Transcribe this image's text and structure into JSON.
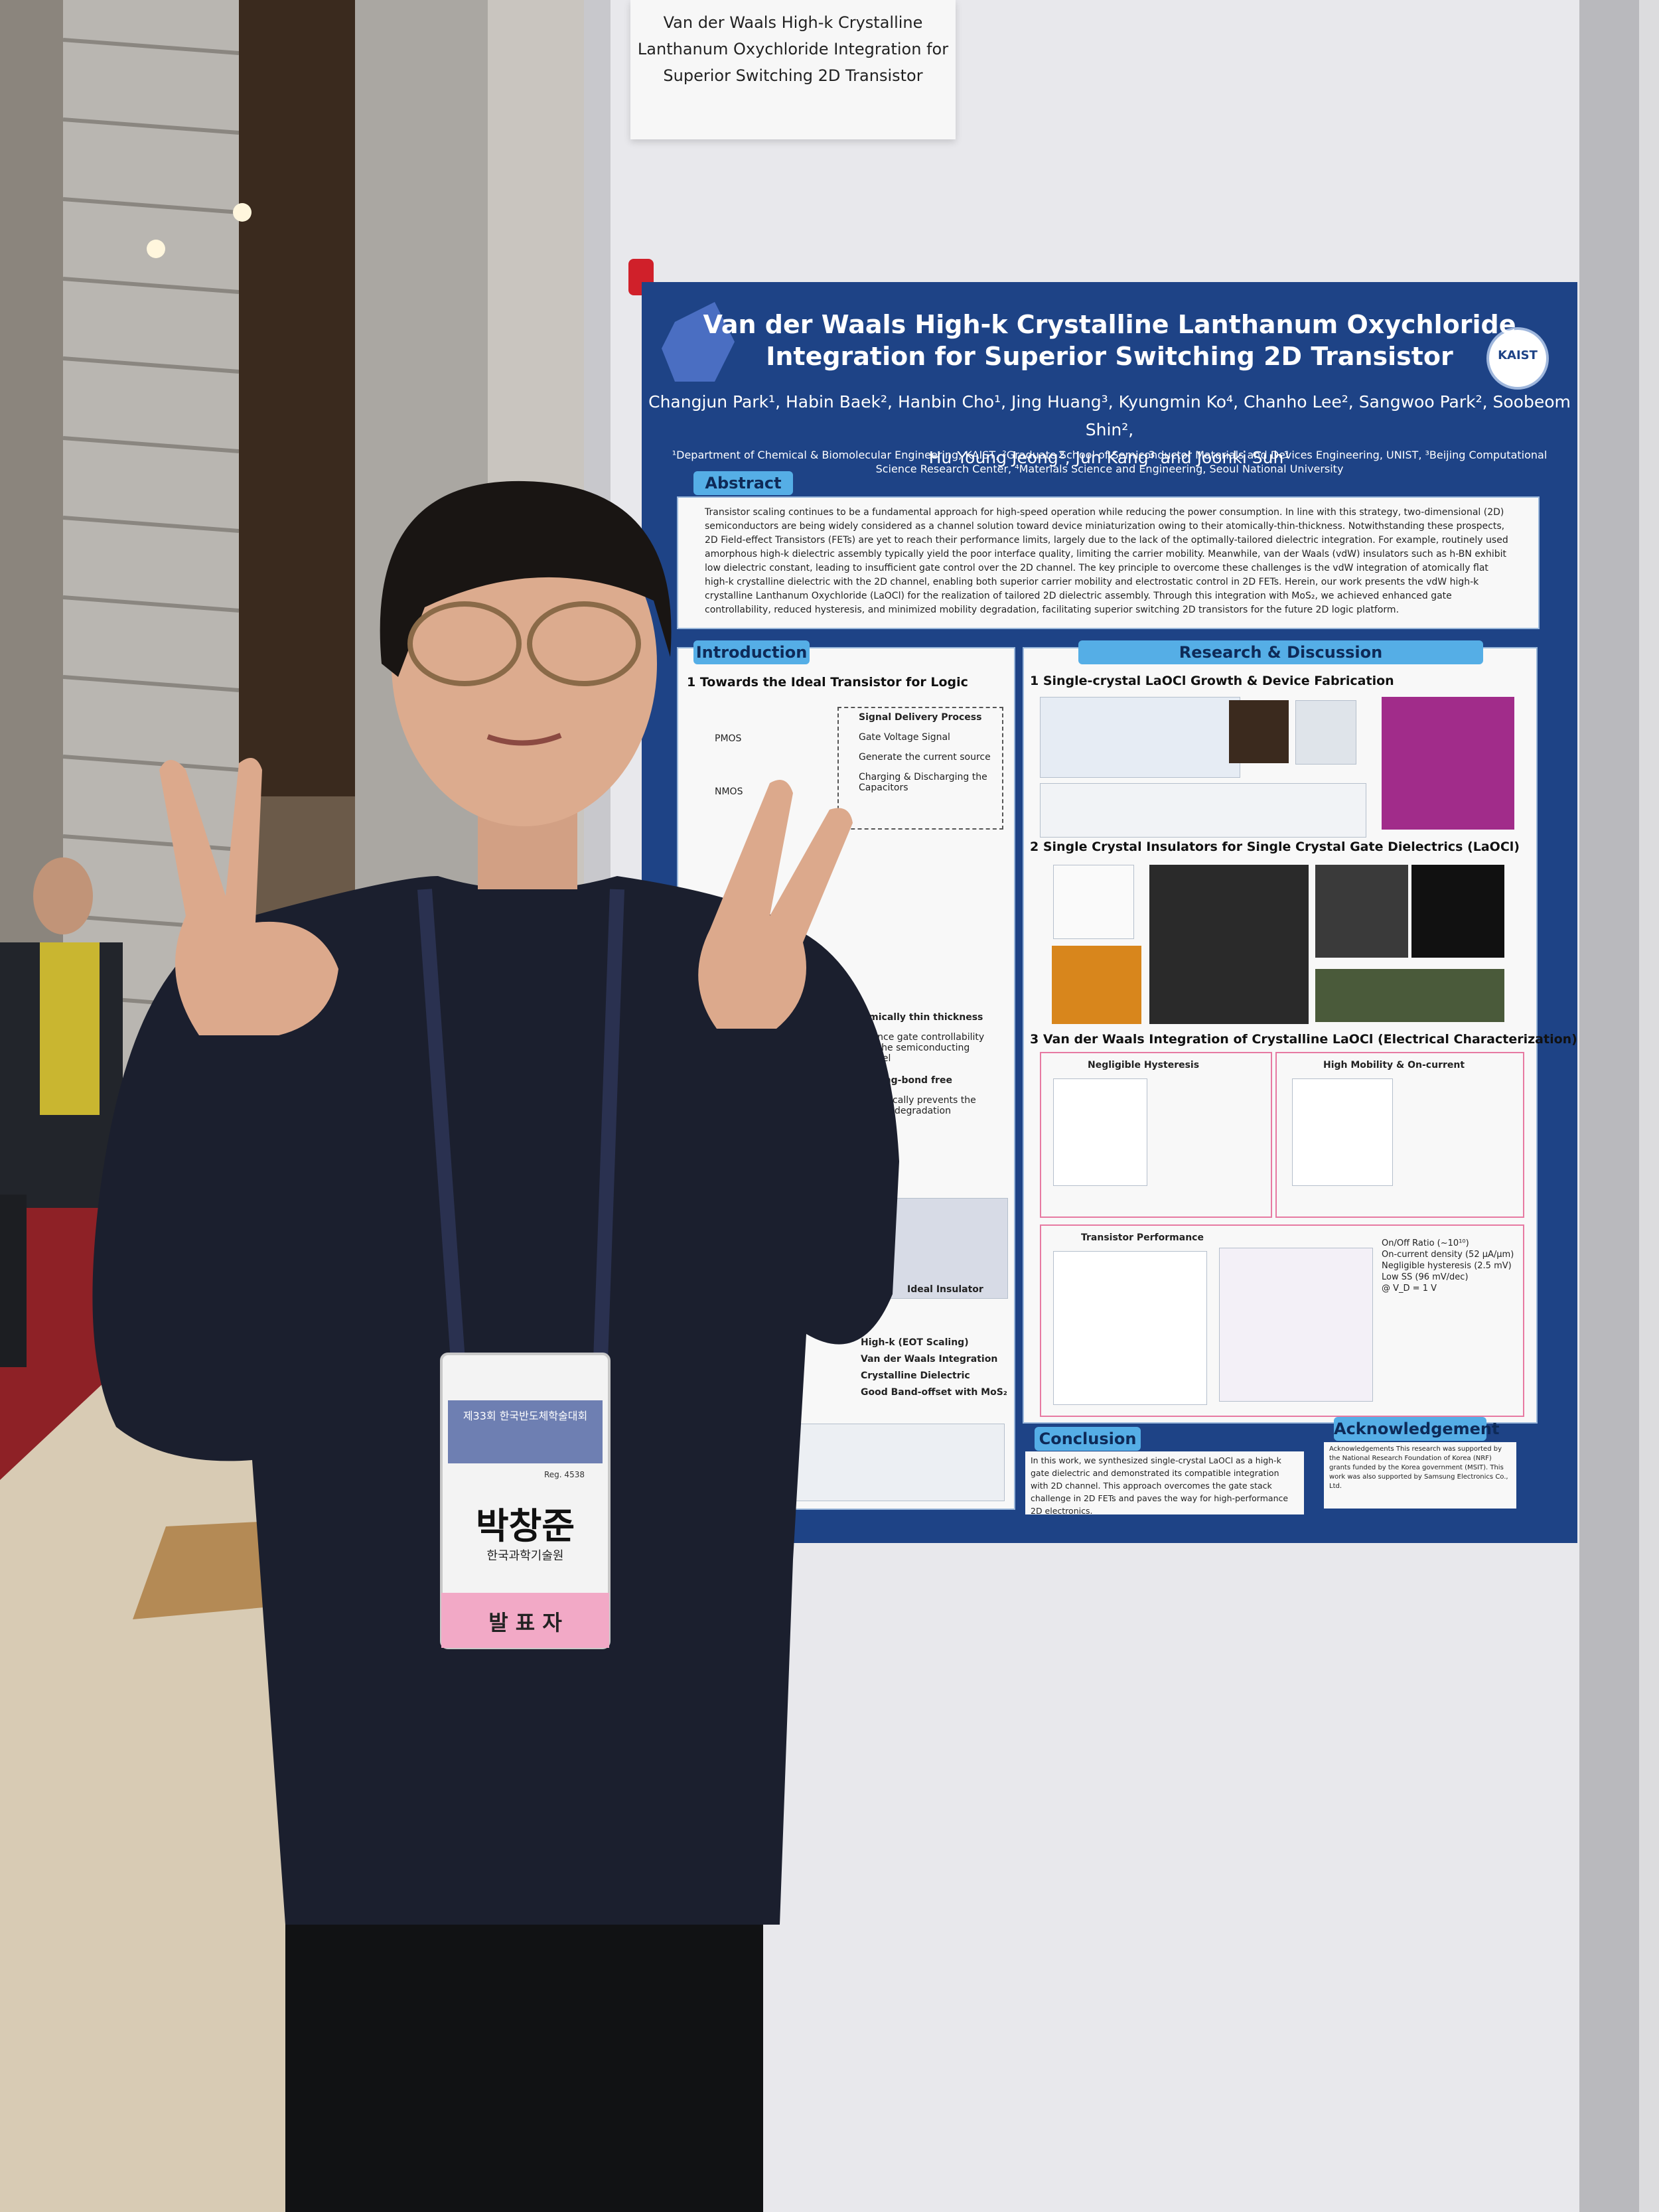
{
  "label": {
    "lines": [
      "Van der Waals High-k Crystalline",
      "Lanthanum Oxychloride Integration for",
      "Superior Switching 2D Transistor"
    ]
  },
  "poster": {
    "title": [
      "Van der Waals High-k Crystalline Lanthanum Oxychloride",
      "Integration for Superior Switching 2D Transistor"
    ],
    "logo": "KAIST",
    "authors": [
      "Changjun Park¹, Habin Baek², Hanbin Cho¹, Jing Huang³, Kyungmin Ko⁴, Chanho Lee², Sangwoo Park², Soobeom Shin²,",
      "Hu Young Jeong², Jun Kang³ and Joonki Suh¹"
    ],
    "affiliations": [
      "¹Department of Chemical & Biomolecular Engineering, KAIST, ²Graduate School of Semiconductor Materials and Devices Engineering, UNIST, ³Beijing Computational",
      "Science Research Center, ⁴Materials Science and Engineering, Seoul National University"
    ],
    "abstract": {
      "heading": "Abstract",
      "text": "Transistor scaling continues to be a fundamental approach for high-speed operation while reducing the power consumption. In line with this strategy, two-dimensional (2D) semiconductors are being widely considered as a channel solution toward device miniaturization owing to their atomically-thin-thickness. Notwithstanding these prospects, 2D Field-effect Transistors (FETs) are yet to reach their performance limits, largely due to the lack of the optimally-tailored dielectric integration. For example, routinely used amorphous high-k dielectric assembly typically yield the poor interface quality, limiting the carrier mobility. Meanwhile, van der Waals (vdW) insulators such as h-BN exhibit low dielectric constant, leading to insufficient gate control over the 2D channel. The key principle to overcome these challenges is the vdW integration of atomically flat high-k crystalline dielectric with the 2D channel, enabling both superior carrier mobility and electrostatic control in 2D FETs. Herein, our work presents the vdW high-k crystalline Lanthanum Oxychloride (LaOCl) for the realization of tailored 2D dielectric assembly. Through this integration with MoS₂, we achieved enhanced gate controllability, reduced hysteresis, and minimized mobility degradation, facilitating superior switching 2D transistors for the future 2D logic platform."
    },
    "introduction": {
      "heading": "Introduction",
      "section": "1 Towards the Ideal Transistor for Logic",
      "circuit": [
        "PMOS",
        "NMOS"
      ],
      "signal": [
        "Signal Delivery Process",
        "Gate Voltage Signal",
        "Generate the current source",
        "Charging & Discharging the Capacitors"
      ],
      "semiconductor": [
        "Atomically thin thickness",
        "Enhance gate controllability over the semiconducting channel",
        "Dangling-bond free",
        "Theoretically prevents the mobility degradation"
      ],
      "insulator": "Ideal Insulator",
      "laocl": [
        "High-k (EOT Scaling)",
        "Van der Waals Integration",
        "Crystalline Dielectric",
        "Good Band-offset with MoS₂"
      ]
    },
    "research": {
      "heading": "Research & Discussion",
      "sections": [
        "1 Single-crystal LaOCl Growth & Device Fabrication",
        "2 Single Crystal Insulators for Single Crystal Gate Dielectrics (LaOCl)",
        "3 Van der Waals Integration of Crystalline LaOCl (Electrical Characterization)"
      ],
      "panels": [
        "Negligible Hysteresis",
        "High Mobility & On-current",
        "Transistor Performance"
      ],
      "performance": [
        "On/Off Ratio (~10¹⁰)",
        "On-current density (52 µA/µm)",
        "Negligible hysteresis (2.5 mV)",
        "Low SS (96 mV/dec)",
        "@ V_D = 1 V"
      ]
    },
    "conclusion": {
      "heading": "Conclusion",
      "text": "In this work, we synthesized single-crystal LaOCl as a high-k gate dielectric and demonstrated its compatible integration with 2D channel. This approach overcomes the gate stack challenge in 2D FETs and paves the way for high-performance 2D electronics."
    },
    "acknowledgement": {
      "heading": "Acknowledgement",
      "text": "Acknowledgements This research was supported by the National Research Foundation of Korea (NRF) grants funded by the Korea government (MSIT). This work was also supported by Samsung Electronics Co., Ltd."
    }
  },
  "badge": {
    "event": "제33회 한국반도체학술대회",
    "reg": "Reg. 4538",
    "name": "박창준",
    "affiliation": "한국과학기술원",
    "role": "발 표 자"
  }
}
